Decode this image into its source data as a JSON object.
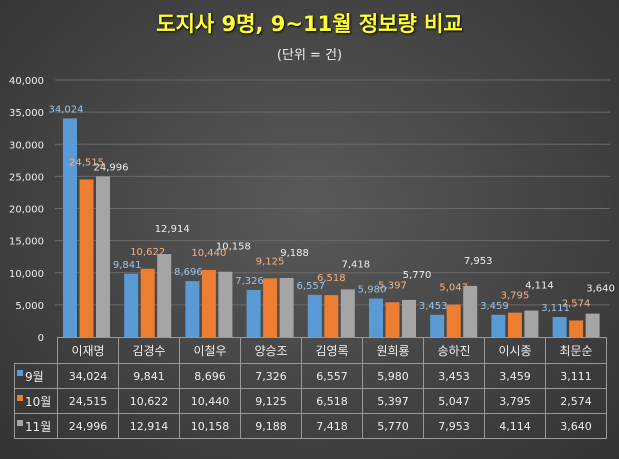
{
  "chart_data": {
    "type": "bar",
    "title": "도지사 9명, 9~11월 정보량 비교",
    "subtitle": "(단위 = 건)",
    "categories": [
      "이재명",
      "김경수",
      "이철우",
      "양승조",
      "김영록",
      "원희룡",
      "송하진",
      "이시종",
      "최문순"
    ],
    "ylim": [
      0,
      40000
    ],
    "yticks": [
      "0",
      "5,000",
      "10,000",
      "15,000",
      "20,000",
      "25,000",
      "30,000",
      "35,000",
      "40,000"
    ],
    "grid": true,
    "legend": "table",
    "series": [
      {
        "name": "9월",
        "color": "#5b9bd5",
        "label_color": "#9dc3e6",
        "values": [
          34024,
          9841,
          8696,
          7326,
          6557,
          5980,
          3453,
          3459,
          3111
        ],
        "labels": [
          "34,024",
          "9,841",
          "8,696",
          "7,326",
          "6,557",
          "5,980",
          "3,453",
          "3,459",
          "3,111"
        ]
      },
      {
        "name": "10월",
        "color": "#ed7d31",
        "label_color": "#f4b183",
        "values": [
          24515,
          10622,
          10440,
          9125,
          6518,
          5397,
          5047,
          3795,
          2574
        ],
        "labels": [
          "24,515",
          "10,622",
          "10,440",
          "9,125",
          "6,518",
          "5,397",
          "5,047",
          "3,795",
          "2,574"
        ]
      },
      {
        "name": "11월",
        "color": "#a5a5a5",
        "label_color": "#eeeeee",
        "values": [
          24996,
          12914,
          10158,
          9188,
          7418,
          5770,
          7953,
          4114,
          3640
        ],
        "labels": [
          "24,996",
          "12,914",
          "10,158",
          "9,188",
          "7,418",
          "5,770",
          "7,953",
          "4,114",
          "3,640"
        ]
      }
    ]
  }
}
